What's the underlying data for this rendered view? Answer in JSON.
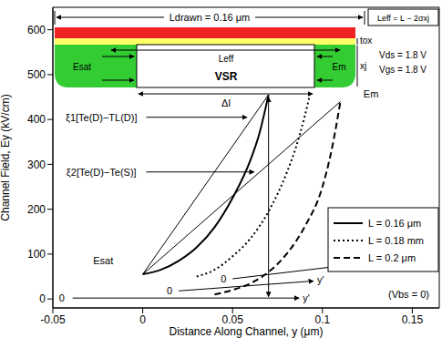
{
  "chart_data": {
    "type": "line",
    "xlabel": "Distance Along Channel, y (μm)",
    "ylabel": "Channel Field, Ey (kV/cm)",
    "xlim": [
      -0.05,
      0.165
    ],
    "xticks": [
      -0.05,
      0,
      0.05,
      0.1,
      0.15
    ],
    "ylim": [
      -20,
      650
    ],
    "yticks": [
      0,
      100,
      200,
      300,
      400,
      500,
      600
    ],
    "legend": "right",
    "series": [
      {
        "name": "L = 0.16 μm",
        "color": "#000000",
        "line_style": "solid",
        "marker": "none",
        "x": [
          0,
          0.01,
          0.02,
          0.03,
          0.04,
          0.05,
          0.06,
          0.065,
          0.07
        ],
        "values": [
          55,
          65,
          85,
          115,
          160,
          225,
          310,
          370,
          455
        ]
      },
      {
        "name": "L = 0.18 mm",
        "color": "#000000",
        "line_style": "dotted",
        "marker": "none",
        "x": [
          0.03,
          0.04,
          0.05,
          0.06,
          0.07,
          0.08,
          0.085,
          0.09,
          0.093
        ],
        "values": [
          50,
          65,
          95,
          135,
          195,
          280,
          335,
          405,
          455
        ]
      },
      {
        "name": "L = 0.2 μm",
        "color": "#000000",
        "line_style": "dashed",
        "marker": "none",
        "x": [
          0.04,
          0.05,
          0.06,
          0.07,
          0.08,
          0.09,
          0.1,
          0.105,
          0.11
        ],
        "values": [
          10,
          20,
          35,
          60,
          100,
          160,
          250,
          330,
          440
        ]
      }
    ],
    "lines": [
      {
        "x": [
          0,
          0.07
        ],
        "values": [
          55,
          455
        ],
        "marker": "none"
      },
      {
        "x": [
          0,
          0.11
        ],
        "values": [
          55,
          440
        ],
        "marker": "none"
      },
      {
        "x": [
          0.07,
          0.07
        ],
        "values": [
          450,
          5
        ],
        "marker": "double_arrow"
      },
      {
        "x": [
          0.002,
          0.058
        ],
        "values": [
          405,
          405
        ],
        "marker": "arrow"
      },
      {
        "x": [
          0.002,
          0.062
        ],
        "values": [
          283,
          283
        ],
        "marker": "arrow"
      },
      {
        "x": [
          -0.039,
          0.087
        ],
        "values": [
          2,
          2
        ],
        "marker": "arrow"
      },
      {
        "x": [
          0.02,
          0.095
        ],
        "values": [
          18,
          40
        ],
        "marker": "arrow"
      },
      {
        "x": [
          0.05,
          0.113
        ],
        "values": [
          45,
          75
        ],
        "marker": "arrow"
      }
    ],
    "annotations": [
      {
        "text": "Esat",
        "x": -0.022,
        "y": 85
      },
      {
        "text": "Em",
        "x": 0.127,
        "y": 458
      },
      {
        "text": "ξ1[Te(D)−TL(D)]",
        "x": -0.023,
        "y": 405
      },
      {
        "text": "ξ2[Te(D)−Te(S)]",
        "x": -0.023,
        "y": 283
      },
      {
        "text": "0",
        "x": -0.045,
        "y": 2
      },
      {
        "text": "y'",
        "x": 0.091,
        "y": 2
      },
      {
        "text": "0",
        "x": 0.015,
        "y": 18
      },
      {
        "text": "y'",
        "x": 0.099,
        "y": 42
      },
      {
        "text": "0",
        "x": 0.045,
        "y": 45
      },
      {
        "text": "y'",
        "x": 0.117,
        "y": 78
      },
      {
        "text": "(Vbs = 0)",
        "x": 0.148,
        "y": 10
      }
    ],
    "inset": {
      "l_drawn": "Ldrawn = 0.16 μm",
      "l_eff_formula": "Leff = L − 2σxj",
      "l_eff": "Leff",
      "t_ox": "tox",
      "x_j": "xj",
      "e_sat": "Esat",
      "e_m": "Em",
      "vsr": "VSR",
      "delta_l": "Δl",
      "v_ds": "Vds = 1.8 V",
      "v_gs": "Vgs = 1.8 V"
    }
  }
}
